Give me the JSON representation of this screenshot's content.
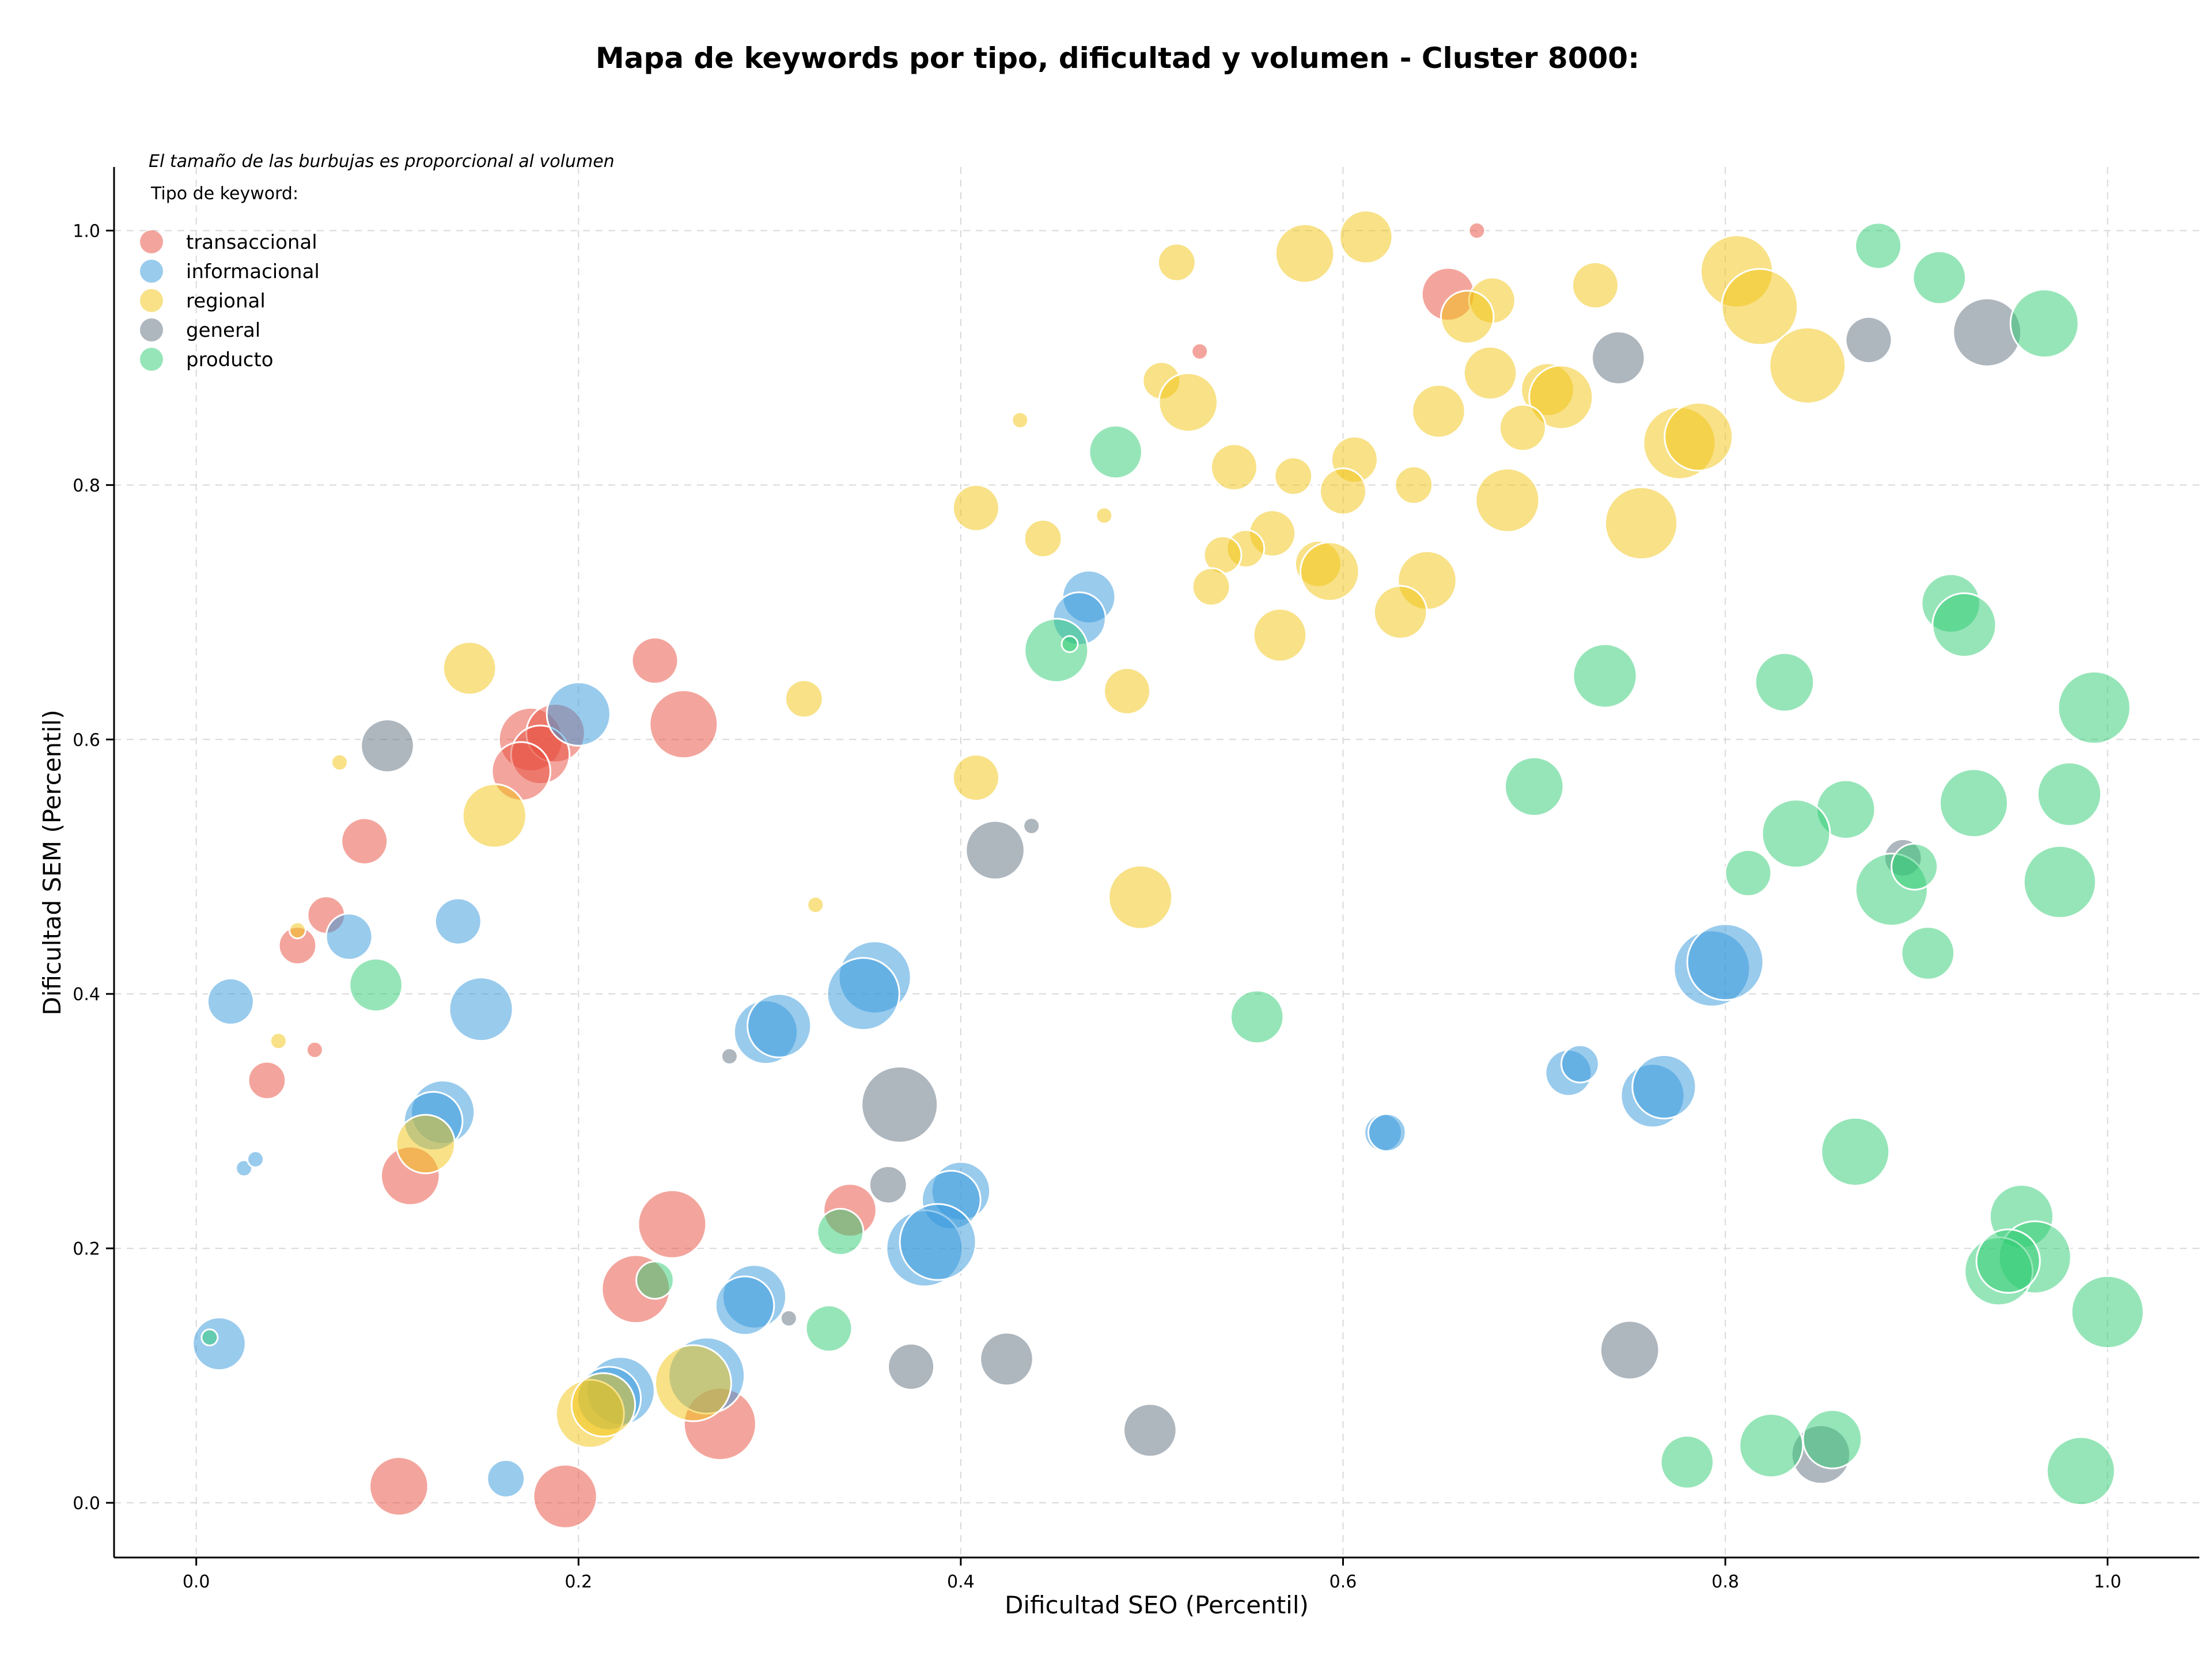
{
  "chart_data": {
    "type": "scatter",
    "title": "Mapa de keywords por tipo, dificultad y volumen - Cluster 8000:",
    "xlabel": "Dificultad SEO (Percentil)",
    "ylabel": "Dificultad SEM (Percentil)",
    "note": "El tamaño de las burbujas es proporcional al volumen",
    "legend_title": "Tipo de keyword:",
    "legend_position": "top-left",
    "xlim": [
      -0.043,
      1.048
    ],
    "ylim": [
      -0.043,
      1.05
    ],
    "xticks": [
      "0.0",
      "0.2",
      "0.4",
      "0.6",
      "0.8",
      "1.0"
    ],
    "yticks": [
      "0.0",
      "0.2",
      "0.4",
      "0.6",
      "0.8",
      "1.0"
    ],
    "grid": true,
    "size_range": [
      14,
      66
    ],
    "series": [
      {
        "name": "transaccional",
        "color": "#e74c3c",
        "points": [
          [
            0.67,
            1.0,
            1
          ],
          [
            0.655,
            0.95,
            4
          ],
          [
            0.525,
            0.905,
            1
          ],
          [
            0.24,
            0.662,
            3
          ],
          [
            0.255,
            0.612,
            7
          ],
          [
            0.175,
            0.6,
            6
          ],
          [
            0.188,
            0.605,
            5
          ],
          [
            0.18,
            0.588,
            5
          ],
          [
            0.17,
            0.575,
            5
          ],
          [
            0.088,
            0.52,
            3
          ],
          [
            0.068,
            0.462,
            2
          ],
          [
            0.053,
            0.438,
            2
          ],
          [
            0.062,
            0.356,
            1
          ],
          [
            0.037,
            0.332,
            2
          ],
          [
            0.112,
            0.257,
            5
          ],
          [
            0.342,
            0.23,
            4
          ],
          [
            0.249,
            0.219,
            7
          ],
          [
            0.23,
            0.168,
            7
          ],
          [
            0.274,
            0.062,
            8
          ],
          [
            0.106,
            0.013,
            5
          ],
          [
            0.193,
            0.005,
            6
          ]
        ]
      },
      {
        "name": "informacional",
        "color": "#3498db",
        "points": [
          [
            0.2,
            0.62,
            6
          ],
          [
            0.467,
            0.712,
            4
          ],
          [
            0.462,
            0.695,
            4
          ],
          [
            0.08,
            0.445,
            3
          ],
          [
            0.137,
            0.457,
            3
          ],
          [
            0.018,
            0.394,
            3
          ],
          [
            0.149,
            0.388,
            6
          ],
          [
            0.355,
            0.413,
            8
          ],
          [
            0.349,
            0.4,
            8
          ],
          [
            0.298,
            0.37,
            6
          ],
          [
            0.305,
            0.375,
            6
          ],
          [
            0.129,
            0.307,
            6
          ],
          [
            0.124,
            0.3,
            5
          ],
          [
            0.025,
            0.263,
            1
          ],
          [
            0.031,
            0.27,
            1
          ],
          [
            0.012,
            0.125,
            4
          ],
          [
            0.4,
            0.245,
            5
          ],
          [
            0.395,
            0.238,
            5
          ],
          [
            0.381,
            0.2,
            9
          ],
          [
            0.388,
            0.205,
            9
          ],
          [
            0.292,
            0.162,
            6
          ],
          [
            0.287,
            0.155,
            5
          ],
          [
            0.222,
            0.088,
            7
          ],
          [
            0.216,
            0.082,
            6
          ],
          [
            0.267,
            0.1,
            9
          ],
          [
            0.162,
            0.019,
            2
          ],
          [
            0.621,
            0.291,
            2
          ],
          [
            0.623,
            0.291,
            2
          ],
          [
            0.718,
            0.338,
            3
          ],
          [
            0.724,
            0.345,
            2
          ],
          [
            0.762,
            0.32,
            6
          ],
          [
            0.768,
            0.327,
            6
          ],
          [
            0.793,
            0.42,
            9
          ],
          [
            0.8,
            0.425,
            9
          ]
        ]
      },
      {
        "name": "regional",
        "color": "#f1c40f",
        "points": [
          [
            0.612,
            0.995,
            4
          ],
          [
            0.58,
            0.982,
            5
          ],
          [
            0.513,
            0.975,
            2
          ],
          [
            0.806,
            0.968,
            8
          ],
          [
            0.818,
            0.94,
            9
          ],
          [
            0.678,
            0.945,
            3
          ],
          [
            0.665,
            0.932,
            4
          ],
          [
            0.732,
            0.957,
            3
          ],
          [
            0.843,
            0.894,
            9
          ],
          [
            0.505,
            0.882,
            2
          ],
          [
            0.519,
            0.865,
            5
          ],
          [
            0.677,
            0.888,
            4
          ],
          [
            0.707,
            0.875,
            4
          ],
          [
            0.714,
            0.869,
            6
          ],
          [
            0.65,
            0.858,
            4
          ],
          [
            0.431,
            0.851,
            1
          ],
          [
            0.776,
            0.833,
            8
          ],
          [
            0.786,
            0.838,
            7
          ],
          [
            0.694,
            0.845,
            3
          ],
          [
            0.543,
            0.814,
            3
          ],
          [
            0.574,
            0.807,
            2
          ],
          [
            0.606,
            0.82,
            3
          ],
          [
            0.6,
            0.795,
            3
          ],
          [
            0.637,
            0.8,
            2
          ],
          [
            0.686,
            0.788,
            6
          ],
          [
            0.408,
            0.782,
            3
          ],
          [
            0.475,
            0.776,
            1
          ],
          [
            0.443,
            0.758,
            2
          ],
          [
            0.563,
            0.762,
            3
          ],
          [
            0.549,
            0.75,
            2
          ],
          [
            0.537,
            0.745,
            2
          ],
          [
            0.587,
            0.738,
            3
          ],
          [
            0.593,
            0.732,
            5
          ],
          [
            0.531,
            0.72,
            2
          ],
          [
            0.756,
            0.77,
            8
          ],
          [
            0.644,
            0.725,
            5
          ],
          [
            0.63,
            0.7,
            4
          ],
          [
            0.567,
            0.682,
            4
          ],
          [
            0.487,
            0.638,
            3
          ],
          [
            0.143,
            0.656,
            4
          ],
          [
            0.318,
            0.632,
            2
          ],
          [
            0.075,
            0.582,
            1
          ],
          [
            0.156,
            0.54,
            6
          ],
          [
            0.408,
            0.57,
            3
          ],
          [
            0.324,
            0.47,
            1
          ],
          [
            0.494,
            0.476,
            6
          ],
          [
            0.053,
            0.45,
            1
          ],
          [
            0.043,
            0.363,
            1
          ],
          [
            0.12,
            0.282,
            5
          ],
          [
            0.206,
            0.07,
            7
          ],
          [
            0.213,
            0.077,
            6
          ],
          [
            0.26,
            0.094,
            9
          ]
        ]
      },
      {
        "name": "general",
        "color": "#5d6d7e",
        "points": [
          [
            0.937,
            0.92,
            7
          ],
          [
            0.875,
            0.914,
            3
          ],
          [
            0.744,
            0.9,
            4
          ],
          [
            0.1,
            0.595,
            4
          ],
          [
            0.418,
            0.513,
            5
          ],
          [
            0.437,
            0.532,
            1
          ],
          [
            0.893,
            0.507,
            2
          ],
          [
            0.279,
            0.351,
            1
          ],
          [
            0.368,
            0.313,
            9
          ],
          [
            0.362,
            0.25,
            2
          ],
          [
            0.31,
            0.145,
            1
          ],
          [
            0.374,
            0.107,
            3
          ],
          [
            0.424,
            0.113,
            4
          ],
          [
            0.499,
            0.057,
            4
          ],
          [
            0.75,
            0.12,
            5
          ],
          [
            0.85,
            0.038,
            5
          ]
        ]
      },
      {
        "name": "producto",
        "color": "#2ecc71",
        "points": [
          [
            0.88,
            0.988,
            3
          ],
          [
            0.912,
            0.963,
            4
          ],
          [
            0.967,
            0.927,
            7
          ],
          [
            0.481,
            0.826,
            4
          ],
          [
            0.45,
            0.67,
            6
          ],
          [
            0.457,
            0.675,
            1
          ],
          [
            0.918,
            0.707,
            5
          ],
          [
            0.925,
            0.69,
            6
          ],
          [
            0.737,
            0.65,
            6
          ],
          [
            0.831,
            0.645,
            5
          ],
          [
            0.993,
            0.625,
            8
          ],
          [
            0.7,
            0.563,
            5
          ],
          [
            0.863,
            0.545,
            5
          ],
          [
            0.93,
            0.55,
            7
          ],
          [
            0.98,
            0.557,
            6
          ],
          [
            0.837,
            0.526,
            7
          ],
          [
            0.812,
            0.495,
            3
          ],
          [
            0.887,
            0.482,
            8
          ],
          [
            0.899,
            0.5,
            3
          ],
          [
            0.975,
            0.488,
            8
          ],
          [
            0.094,
            0.407,
            4
          ],
          [
            0.906,
            0.432,
            4
          ],
          [
            0.555,
            0.382,
            4
          ],
          [
            0.868,
            0.276,
            7
          ],
          [
            0.955,
            0.225,
            6
          ],
          [
            0.962,
            0.193,
            8
          ],
          [
            0.943,
            0.182,
            7
          ],
          [
            0.948,
            0.19,
            6
          ],
          [
            1.0,
            0.15,
            8
          ],
          [
            0.337,
            0.213,
            3
          ],
          [
            0.24,
            0.175,
            2
          ],
          [
            0.331,
            0.137,
            3
          ],
          [
            0.007,
            0.13,
            1
          ],
          [
            0.78,
            0.032,
            4
          ],
          [
            0.824,
            0.045,
            6
          ],
          [
            0.856,
            0.05,
            5
          ],
          [
            0.986,
            0.025,
            7
          ]
        ]
      }
    ]
  }
}
